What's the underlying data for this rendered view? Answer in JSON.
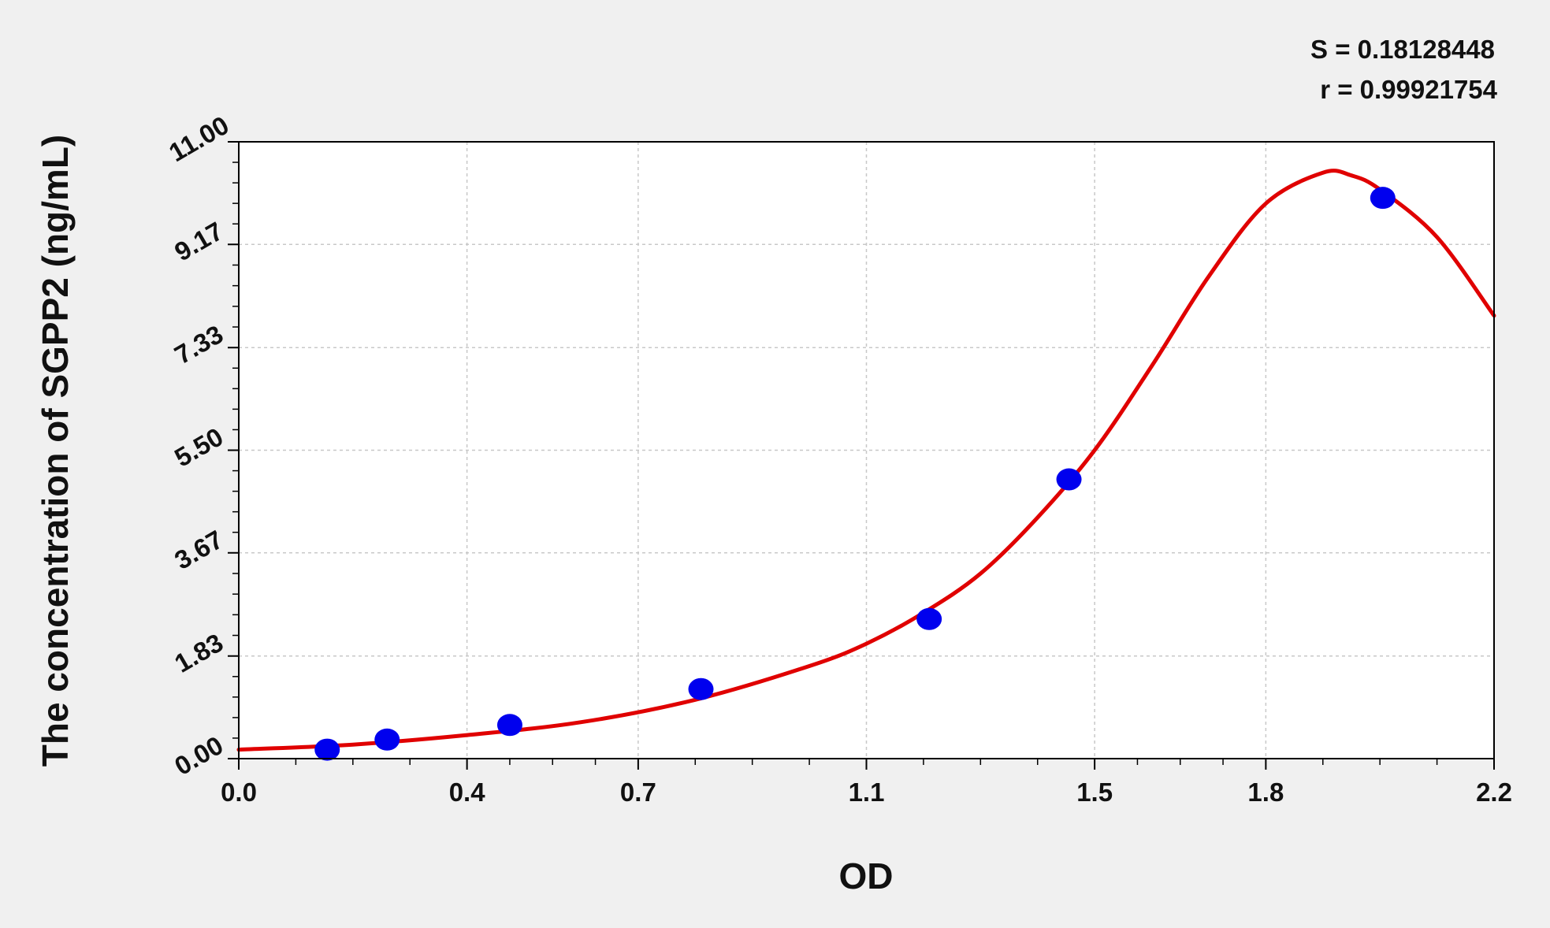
{
  "chart_data": {
    "type": "scatter",
    "xlabel": "OD",
    "ylabel": "The concentration of  SGPP2 (ng/mL)",
    "stats": {
      "s": "S = 0.18128448",
      "r": "r = 0.99921754"
    },
    "xlim": [
      0.0,
      2.2
    ],
    "ylim": [
      0.0,
      11.0
    ],
    "x_ticks": [
      0.0,
      0.4,
      0.7,
      1.1,
      1.5,
      1.8,
      2.2
    ],
    "x_tick_labels": [
      "0.0",
      "0.4",
      "0.7",
      "1.1",
      "1.5",
      "1.8",
      "2.2"
    ],
    "y_ticks": [
      0.0,
      1.83,
      3.67,
      5.5,
      7.33,
      9.17,
      11.0
    ],
    "y_tick_labels": [
      "0.00",
      "1.83",
      "3.67",
      "5.50",
      "7.33",
      "9.17",
      "11.00"
    ],
    "grid": true,
    "series": [
      {
        "kind": "points",
        "color": "#0000ee",
        "x": [
          0.155,
          0.26,
          0.475,
          0.81,
          1.21,
          1.455,
          2.005
        ],
        "y": [
          0.16,
          0.34,
          0.6,
          1.24,
          2.49,
          4.98,
          10.0
        ]
      },
      {
        "kind": "fitted-curve",
        "color": "#e00000",
        "x": [
          0.0,
          0.2,
          0.4,
          0.6,
          0.8,
          1.0,
          1.1,
          1.2,
          1.3,
          1.4,
          1.5,
          1.6,
          1.7,
          1.8,
          1.9,
          1.95,
          2.0,
          2.1,
          2.2
        ],
        "y": [
          0.16,
          0.25,
          0.42,
          0.65,
          1.05,
          1.65,
          2.05,
          2.6,
          3.3,
          4.3,
          5.5,
          7.0,
          8.6,
          9.9,
          10.45,
          10.4,
          10.15,
          9.3,
          7.9
        ]
      }
    ]
  }
}
